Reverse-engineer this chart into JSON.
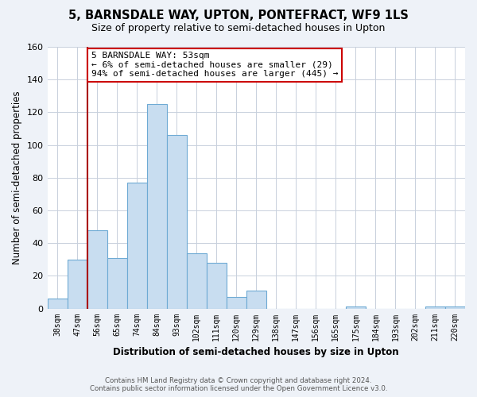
{
  "title": "5, BARNSDALE WAY, UPTON, PONTEFRACT, WF9 1LS",
  "subtitle": "Size of property relative to semi-detached houses in Upton",
  "xlabel": "Distribution of semi-detached houses by size in Upton",
  "ylabel": "Number of semi-detached properties",
  "bar_labels": [
    "38sqm",
    "47sqm",
    "56sqm",
    "65sqm",
    "74sqm",
    "84sqm",
    "93sqm",
    "102sqm",
    "111sqm",
    "120sqm",
    "129sqm",
    "138sqm",
    "147sqm",
    "156sqm",
    "165sqm",
    "175sqm",
    "184sqm",
    "193sqm",
    "202sqm",
    "211sqm",
    "220sqm"
  ],
  "bar_values": [
    6,
    30,
    48,
    31,
    77,
    125,
    106,
    34,
    28,
    7,
    11,
    0,
    0,
    0,
    0,
    1,
    0,
    0,
    0,
    1,
    1
  ],
  "bar_color": "#c8ddf0",
  "bar_edge_color": "#6eaad4",
  "vline_color": "#aa0000",
  "annotation_text": "5 BARNSDALE WAY: 53sqm\n← 6% of semi-detached houses are smaller (29)\n94% of semi-detached houses are larger (445) →",
  "annotation_box_color": "#ffffff",
  "annotation_box_edge_color": "#cc0000",
  "ylim": [
    0,
    160
  ],
  "yticks": [
    0,
    20,
    40,
    60,
    80,
    100,
    120,
    140,
    160
  ],
  "footer_line1": "Contains HM Land Registry data © Crown copyright and database right 2024.",
  "footer_line2": "Contains public sector information licensed under the Open Government Licence v3.0.",
  "bg_color": "#eef2f8",
  "plot_bg_color": "#ffffff",
  "grid_color": "#c8d0dc"
}
